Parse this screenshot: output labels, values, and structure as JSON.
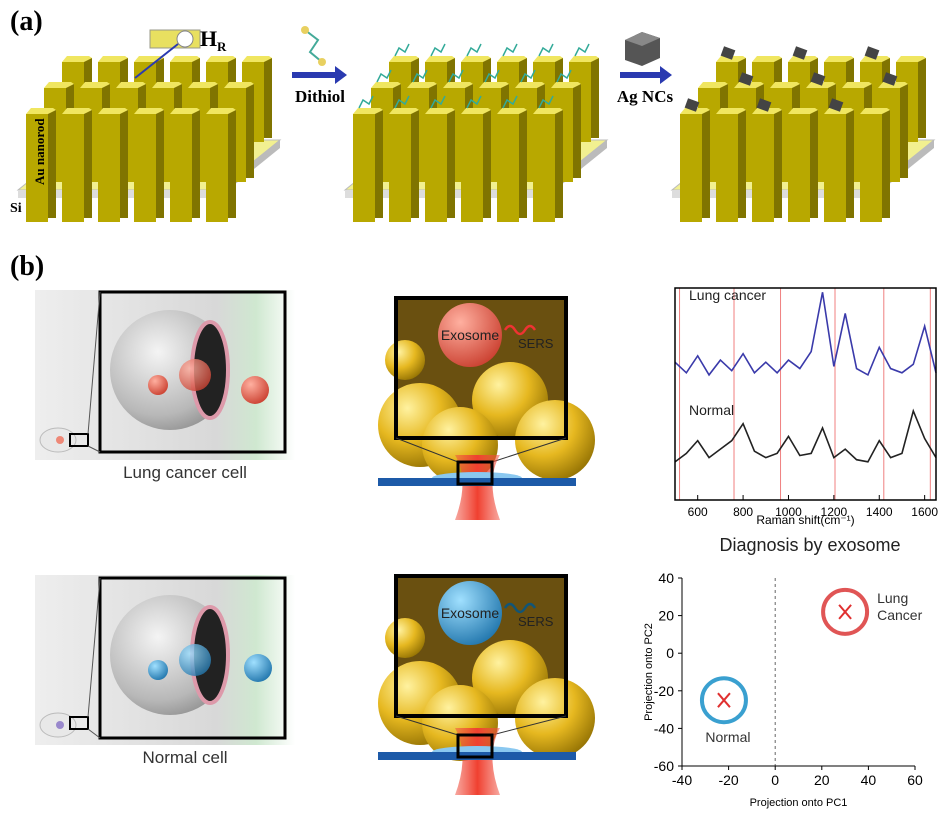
{
  "panel_a": {
    "label": "(a)",
    "hr_main": "H",
    "hr_sub": "R",
    "step1": "Dithiol",
    "step2": "Ag NCs",
    "rod_label": "Au nanorod",
    "substrate": "Si"
  },
  "panel_b": {
    "label": "(b)",
    "cancer_cell": "Lung cancer cell",
    "normal_cell": "Normal cell",
    "exosome_top": "Exosome",
    "sers_top": "SERS",
    "exosome_bottom": "Exosome",
    "sers_bottom": "SERS"
  },
  "chart_data": [
    {
      "type": "line",
      "xlabel": "Raman shift(cm⁻¹)",
      "x": [
        500,
        550,
        600,
        650,
        700,
        750,
        800,
        850,
        900,
        950,
        1000,
        1050,
        1100,
        1150,
        1200,
        1250,
        1300,
        1350,
        1400,
        1450,
        1500,
        1550,
        1600,
        1650
      ],
      "series": [
        {
          "name": "Lung cancer",
          "color": "#3a3aaa",
          "values": [
            6.5,
            6.0,
            6.8,
            5.9,
            6.6,
            6.1,
            6.9,
            6.0,
            6.5,
            6.0,
            6.6,
            6.2,
            7.0,
            9.8,
            6.3,
            8.8,
            6.2,
            5.9,
            7.2,
            6.2,
            6.0,
            6.4,
            8.2,
            6.0
          ]
        },
        {
          "name": "Normal",
          "color": "#222222",
          "values": [
            1.8,
            2.2,
            2.8,
            2.0,
            2.4,
            2.8,
            3.6,
            2.3,
            2.0,
            2.2,
            3.0,
            2.1,
            2.2,
            3.4,
            2.0,
            2.4,
            1.9,
            1.8,
            2.8,
            2.0,
            2.2,
            4.2,
            2.9,
            2.0
          ]
        }
      ],
      "xlim": [
        500,
        1650
      ],
      "xticks": [
        600,
        800,
        1000,
        1200,
        1400,
        1600
      ],
      "ylim": [
        0,
        10
      ],
      "reference_lines": [
        520,
        760,
        965,
        1205,
        1420,
        1625
      ],
      "reference_color": "#f08080"
    },
    {
      "type": "scatter",
      "title": "Diagnosis by exosome",
      "xlabel": "Projection onto PC1",
      "ylabel": "Projection onto PC2",
      "xlim": [
        -40,
        60
      ],
      "ylim": [
        -60,
        40
      ],
      "xticks": [
        -40,
        -20,
        0,
        20,
        40,
        60
      ],
      "yticks": [
        -60,
        -40,
        -20,
        0,
        20,
        40
      ],
      "divider": 0,
      "series": [
        {
          "name": "Lung Cancer",
          "color": "#e05555",
          "x": [
            30
          ],
          "values": [
            22
          ]
        },
        {
          "name": "Normal",
          "color": "#3aa0d0",
          "x": [
            -22
          ],
          "values": [
            -25
          ]
        }
      ]
    }
  ]
}
